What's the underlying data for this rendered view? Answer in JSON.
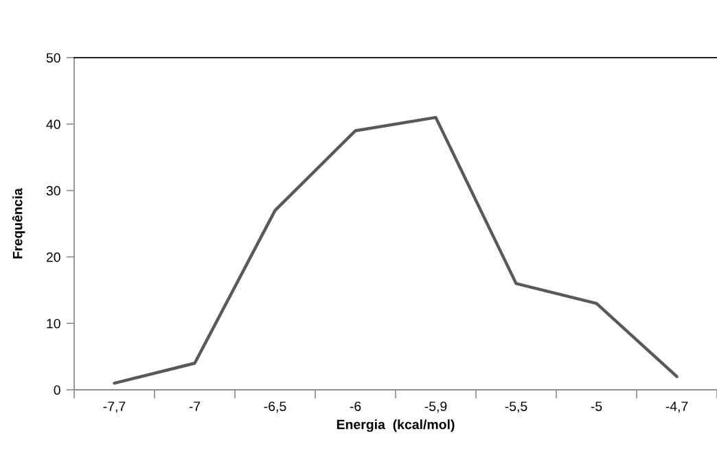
{
  "chart_data": {
    "type": "line",
    "xlabel": "Energia  (kcal/mol)",
    "ylabel": "Frequência",
    "categories": [
      "-7,7",
      "-7",
      "-6,5",
      "-6",
      "-5,9",
      "-5,5",
      "-5",
      "-4,7"
    ],
    "series": [
      {
        "color": "#595959",
        "values": [
          1,
          4,
          27,
          39,
          41,
          16,
          13,
          2
        ]
      }
    ],
    "ylim": [
      0,
      50
    ],
    "yticks": [
      0,
      10,
      20,
      30,
      40,
      50
    ],
    "grid": false,
    "marker": "none",
    "line_style": "solid"
  }
}
